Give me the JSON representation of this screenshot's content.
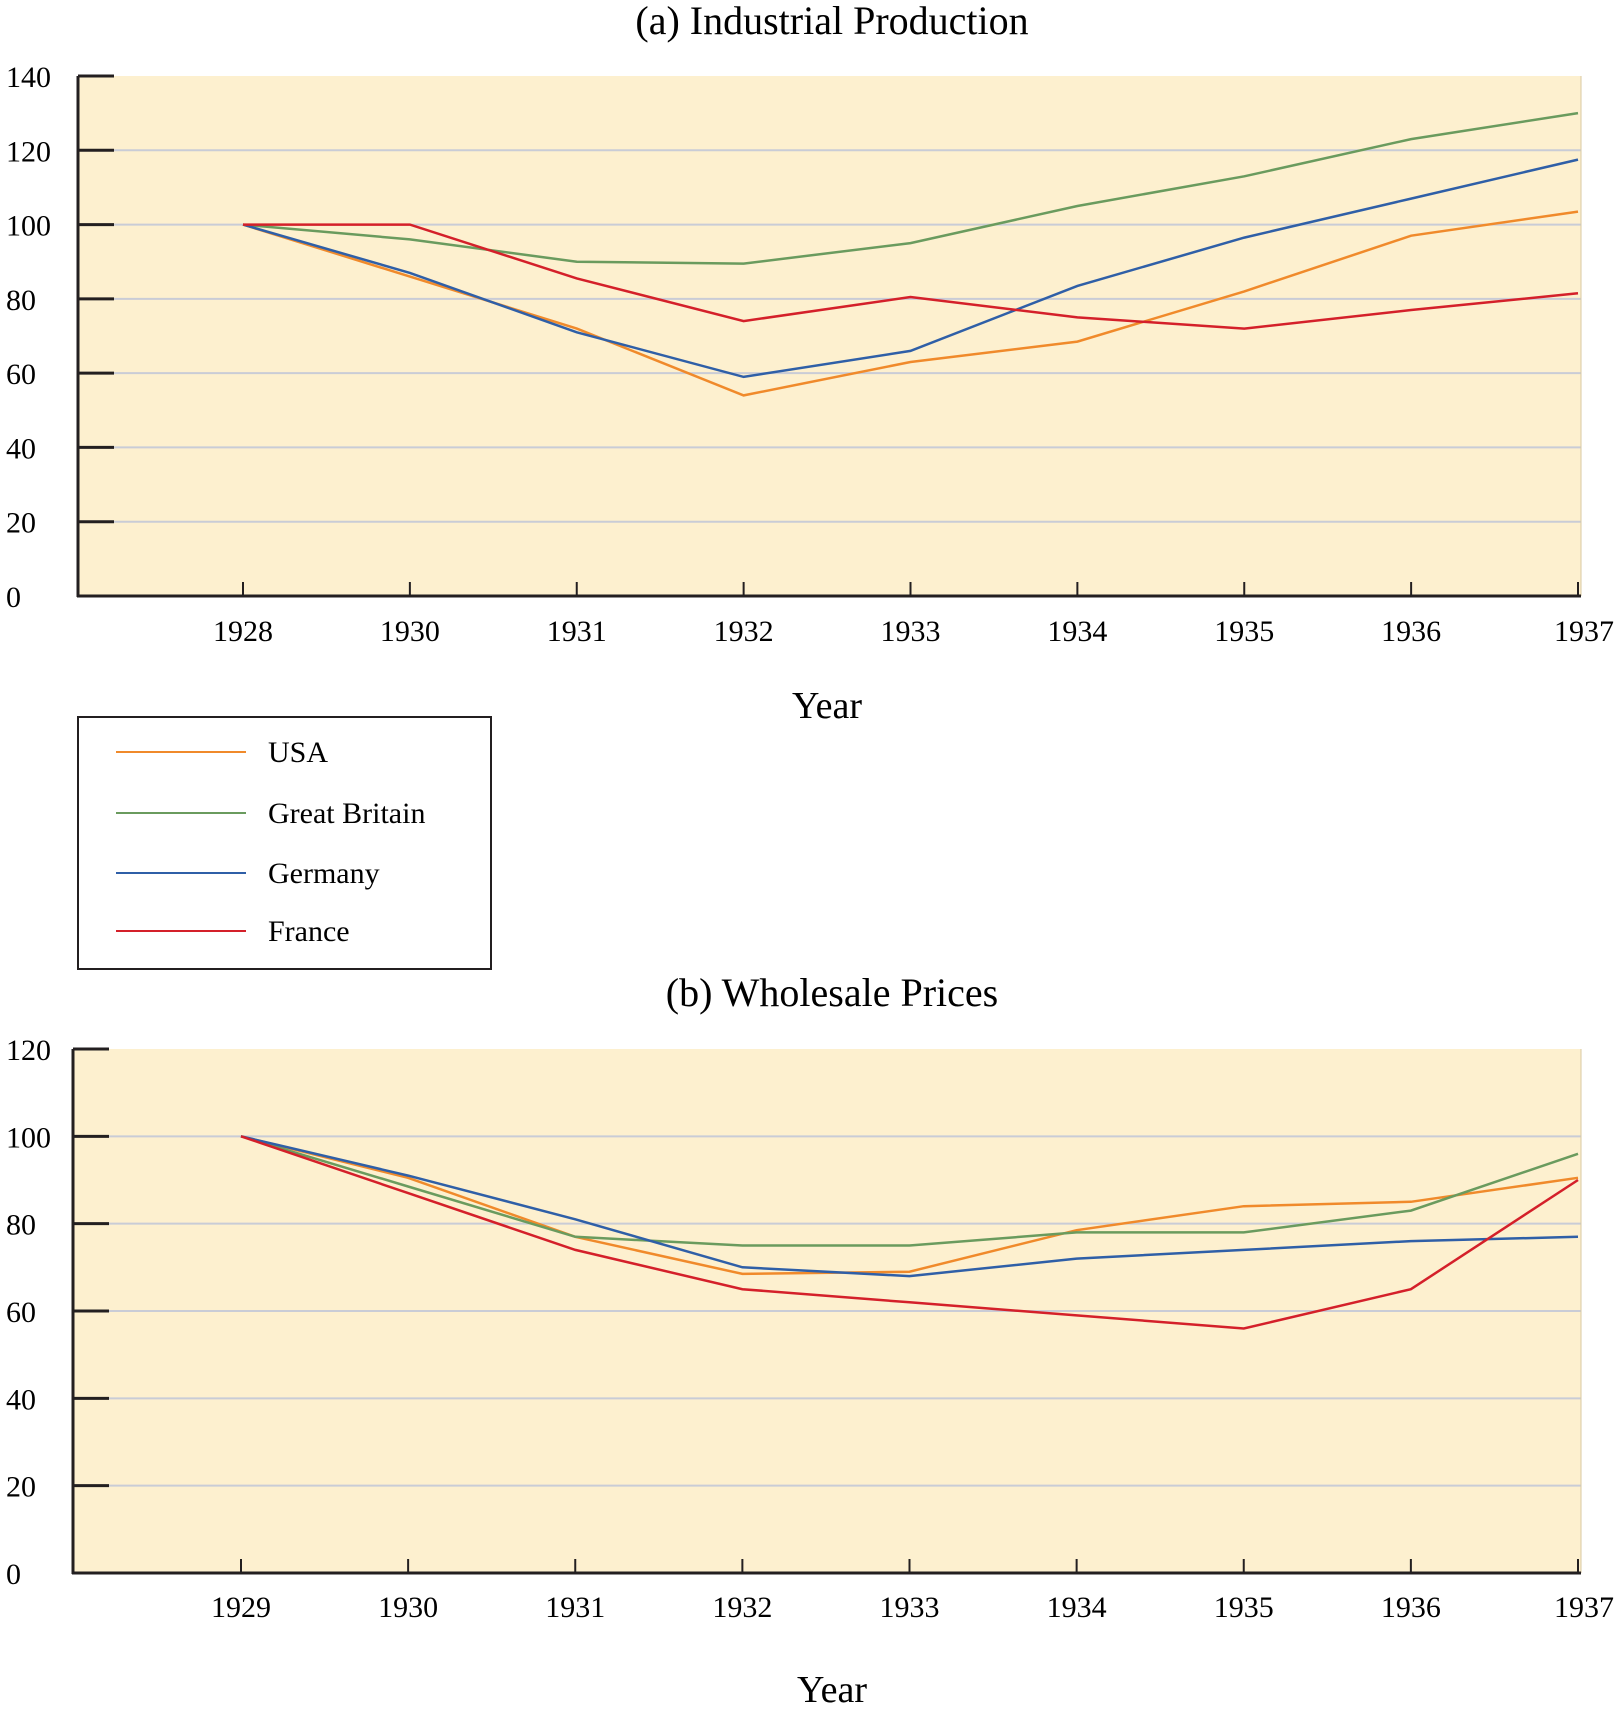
{
  "chart_data": [
    {
      "type": "line",
      "title": "(a) Industrial Production",
      "xlabel": "Year",
      "ylabel": "",
      "categories": [
        "1928",
        "1930",
        "1931",
        "1932",
        "1933",
        "1934",
        "1935",
        "1936",
        "1937"
      ],
      "ylim": [
        0,
        140
      ],
      "yticks": [
        0,
        20,
        40,
        60,
        80,
        100,
        120,
        140
      ],
      "grid": true,
      "series": [
        {
          "name": "USA",
          "values": [
            100,
            86,
            72,
            54,
            63,
            68.5,
            82,
            97,
            103.5
          ]
        },
        {
          "name": "Great Britain",
          "values": [
            100,
            96,
            90,
            89.5,
            95,
            105,
            113,
            123,
            130
          ]
        },
        {
          "name": "Germany",
          "values": [
            100,
            87,
            71,
            59,
            66,
            83.5,
            96.5,
            107,
            117.5
          ]
        },
        {
          "name": "France",
          "values": [
            100,
            100,
            85.5,
            74,
            80.5,
            75,
            72,
            77,
            81.5
          ]
        }
      ]
    },
    {
      "type": "line",
      "title": "(b) Wholesale Prices",
      "xlabel": "Year",
      "ylabel": "",
      "categories": [
        "1929",
        "1930",
        "1931",
        "1932",
        "1933",
        "1934",
        "1935",
        "1936",
        "1937"
      ],
      "ylim": [
        0,
        120
      ],
      "yticks": [
        0,
        20,
        40,
        60,
        80,
        100,
        120
      ],
      "grid": true,
      "series": [
        {
          "name": "USA",
          "values": [
            100,
            90.5,
            77,
            68.5,
            69,
            78.5,
            84,
            85,
            90.5
          ]
        },
        {
          "name": "Great Britain",
          "values": [
            100,
            88.5,
            77,
            75,
            75,
            78,
            78,
            83,
            96
          ]
        },
        {
          "name": "Germany",
          "values": [
            100,
            91,
            81,
            70,
            68,
            72,
            74,
            76,
            77
          ]
        },
        {
          "name": "France",
          "values": [
            100,
            87,
            74,
            65,
            62,
            59,
            56,
            65,
            90
          ]
        }
      ]
    }
  ],
  "legend": {
    "position": "between-panels-left",
    "entries": [
      {
        "label": "USA",
        "color": "#f08a2b"
      },
      {
        "label": "Great Britain",
        "color": "#6a9b5e"
      },
      {
        "label": "Germany",
        "color": "#2f5fa7"
      },
      {
        "label": "France",
        "color": "#d4202a"
      }
    ]
  },
  "colors": {
    "plot_background": "#fdf0cf",
    "gridline": "#c9ccd6",
    "axis": "#231f20"
  }
}
